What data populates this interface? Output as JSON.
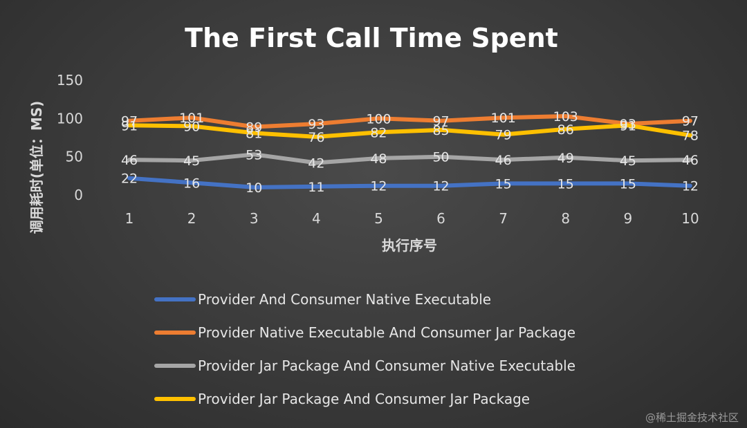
{
  "chart_data": {
    "type": "line",
    "title": "The First Call Time Spent",
    "xlabel": "执行序号",
    "ylabel": "调用耗时(单位：MS)",
    "categories": [
      "1",
      "2",
      "3",
      "4",
      "5",
      "6",
      "7",
      "8",
      "9",
      "10"
    ],
    "ylim": [
      0,
      150
    ],
    "yticks": [
      0,
      50,
      100,
      150
    ],
    "grid": false,
    "legend_position": "bottom",
    "series": [
      {
        "name": "Provider And Consumer  Native Executable",
        "color": "#4472c4",
        "values": [
          22,
          16,
          10,
          11,
          12,
          12,
          15,
          15,
          15,
          12
        ]
      },
      {
        "name": "Provider Native Executable And Consumer Jar Package",
        "color": "#ed7d31",
        "values": [
          97,
          101,
          89,
          93,
          100,
          97,
          101,
          103,
          93,
          97
        ]
      },
      {
        "name": "Provider Jar Package  And Consumer Native Executable",
        "color": "#a5a5a5",
        "values": [
          46,
          45,
          53,
          42,
          48,
          50,
          46,
          49,
          45,
          46
        ]
      },
      {
        "name": "Provider Jar Package  And Consumer Jar Package",
        "color": "#ffc000",
        "values": [
          91,
          90,
          81,
          76,
          82,
          85,
          79,
          86,
          91,
          78
        ]
      }
    ]
  },
  "watermark": "@稀土掘金技术社区"
}
